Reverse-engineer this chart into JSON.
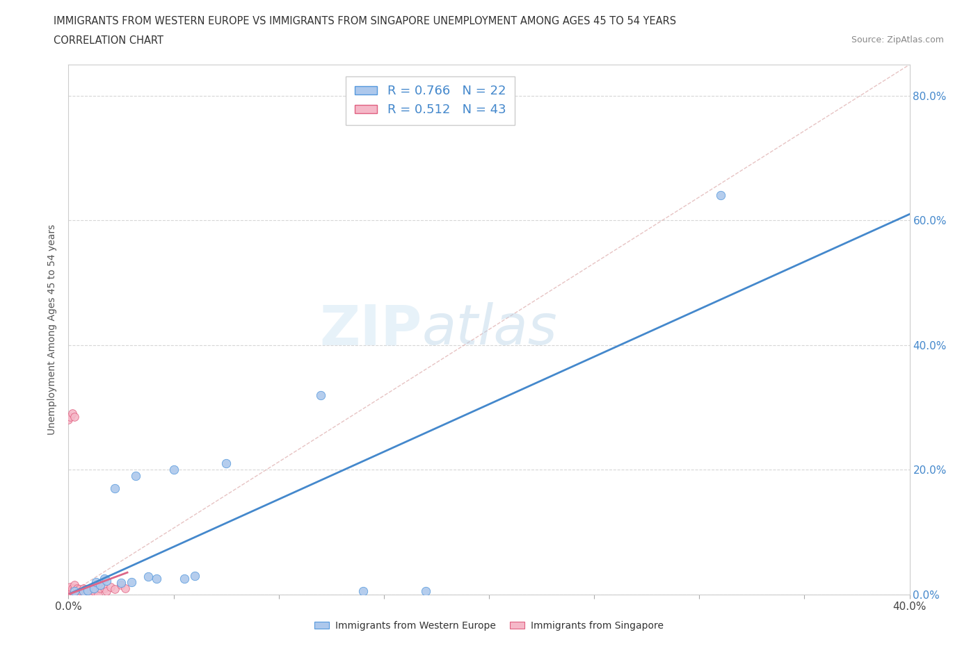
{
  "title_line1": "IMMIGRANTS FROM WESTERN EUROPE VS IMMIGRANTS FROM SINGAPORE UNEMPLOYMENT AMONG AGES 45 TO 54 YEARS",
  "title_line2": "CORRELATION CHART",
  "source_text": "Source: ZipAtlas.com",
  "ylabel": "Unemployment Among Ages 45 to 54 years",
  "watermark_part1": "ZIP",
  "watermark_part2": "atlas",
  "blue_R": 0.766,
  "blue_N": 22,
  "pink_R": 0.512,
  "pink_N": 43,
  "blue_fill": "#adc8ec",
  "pink_fill": "#f5b8c8",
  "blue_edge": "#5599dd",
  "pink_edge": "#e06080",
  "blue_line": "#4488cc",
  "pink_line": "#dd6688",
  "diag_color": "#e8b8c0",
  "blue_scatter": [
    [
      0.003,
      0.005
    ],
    [
      0.007,
      0.005
    ],
    [
      0.009,
      0.006
    ],
    [
      0.012,
      0.01
    ],
    [
      0.013,
      0.02
    ],
    [
      0.015,
      0.015
    ],
    [
      0.017,
      0.025
    ],
    [
      0.018,
      0.022
    ],
    [
      0.022,
      0.17
    ],
    [
      0.025,
      0.018
    ],
    [
      0.03,
      0.02
    ],
    [
      0.032,
      0.19
    ],
    [
      0.038,
      0.028
    ],
    [
      0.042,
      0.025
    ],
    [
      0.05,
      0.2
    ],
    [
      0.055,
      0.025
    ],
    [
      0.06,
      0.03
    ],
    [
      0.075,
      0.21
    ],
    [
      0.12,
      0.32
    ],
    [
      0.14,
      0.005
    ],
    [
      0.17,
      0.005
    ],
    [
      0.31,
      0.64
    ]
  ],
  "pink_scatter": [
    [
      0.0,
      0.0
    ],
    [
      0.0,
      0.004
    ],
    [
      0.0,
      0.008
    ],
    [
      0.001,
      0.0
    ],
    [
      0.001,
      0.004
    ],
    [
      0.001,
      0.008
    ],
    [
      0.001,
      0.012
    ],
    [
      0.002,
      0.0
    ],
    [
      0.002,
      0.005
    ],
    [
      0.002,
      0.01
    ],
    [
      0.003,
      0.0
    ],
    [
      0.003,
      0.005
    ],
    [
      0.003,
      0.01
    ],
    [
      0.003,
      0.015
    ],
    [
      0.004,
      0.0
    ],
    [
      0.004,
      0.005
    ],
    [
      0.004,
      0.01
    ],
    [
      0.005,
      0.0
    ],
    [
      0.005,
      0.008
    ],
    [
      0.006,
      0.0
    ],
    [
      0.006,
      0.005
    ],
    [
      0.007,
      0.005
    ],
    [
      0.007,
      0.01
    ],
    [
      0.008,
      0.0
    ],
    [
      0.008,
      0.008
    ],
    [
      0.009,
      0.005
    ],
    [
      0.01,
      0.0
    ],
    [
      0.01,
      0.008
    ],
    [
      0.012,
      0.005
    ],
    [
      0.012,
      0.01
    ],
    [
      0.014,
      0.0
    ],
    [
      0.015,
      0.01
    ],
    [
      0.015,
      0.015
    ],
    [
      0.017,
      0.01
    ],
    [
      0.018,
      0.005
    ],
    [
      0.02,
      0.012
    ],
    [
      0.022,
      0.008
    ],
    [
      0.025,
      0.015
    ],
    [
      0.027,
      0.01
    ],
    [
      0.0,
      0.28
    ],
    [
      0.001,
      0.285
    ],
    [
      0.002,
      0.29
    ],
    [
      0.003,
      0.285
    ]
  ],
  "xlim": [
    0.0,
    0.4
  ],
  "ylim": [
    0.0,
    0.85
  ],
  "xtick_positions": [
    0.0,
    0.05,
    0.1,
    0.15,
    0.2,
    0.25,
    0.3,
    0.35,
    0.4
  ],
  "xtick_labels": [
    "0.0%",
    "",
    "",
    "",
    "",
    "",
    "",
    "",
    "40.0%"
  ],
  "ytick_positions": [
    0.0,
    0.2,
    0.4,
    0.6,
    0.8
  ],
  "ytick_labels": [
    "0.0%",
    "20.0%",
    "40.0%",
    "60.0%",
    "80.0%"
  ],
  "blue_line_x0": 0.0,
  "blue_line_y0": 0.0,
  "blue_line_x1": 0.4,
  "blue_line_y1": 0.61,
  "pink_line_x0": 0.0,
  "pink_line_y0": 0.0,
  "pink_line_x1": 0.028,
  "pink_line_y1": 0.035
}
